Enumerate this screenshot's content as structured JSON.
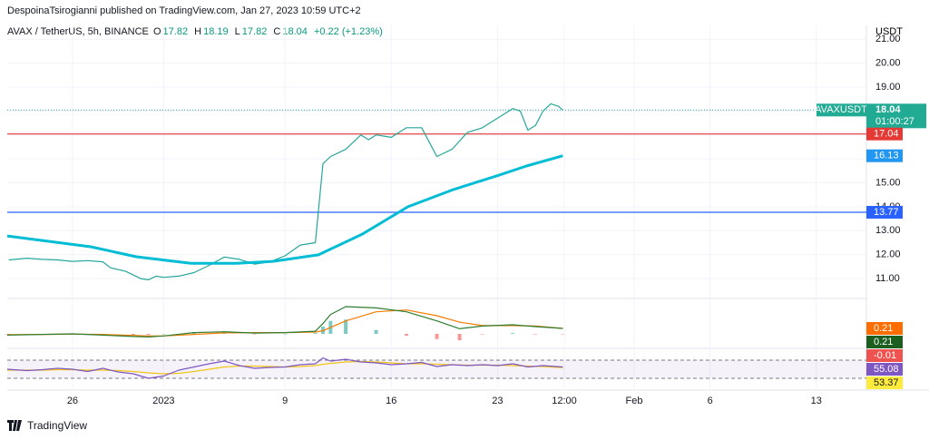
{
  "header": {
    "publisher": "DespoinaTsirogianni published on TradingView.com, Jan 27, 2023 10:59 UTC+2"
  },
  "symbol": {
    "name": "AVAX / TetherUS, 5h, BINANCE",
    "ohlc": [
      {
        "label": "O",
        "value": "17.82"
      },
      {
        "label": "H",
        "value": "18.19"
      },
      {
        "label": "L",
        "value": "17.82"
      },
      {
        "label": "C",
        "value": "18.04"
      }
    ],
    "change": "+0.22 (+1.23%)"
  },
  "chart_data": [
    {
      "type": "line",
      "y_unit": "USDT",
      "grid": true,
      "xlim": [
        -4.3,
        52.3
      ],
      "xticks": [
        {
          "value": 0,
          "label": "26"
        },
        {
          "value": 6,
          "label": "2023"
        },
        {
          "value": 14,
          "label": "9"
        },
        {
          "value": 21,
          "label": "16"
        },
        {
          "value": 28,
          "label": "23"
        },
        {
          "value": 32.4,
          "label": "12:00"
        },
        {
          "value": 37,
          "label": "Feb"
        },
        {
          "value": 42,
          "label": "6"
        },
        {
          "value": 49,
          "label": "13"
        }
      ],
      "ylim": [
        10.32,
        21.5
      ],
      "yticks": [
        {
          "value": 11,
          "label": "11.00"
        },
        {
          "value": 12,
          "label": "12.00"
        },
        {
          "value": 13,
          "label": "13.00"
        },
        {
          "value": 14,
          "label": "14.00"
        },
        {
          "value": 15,
          "label": "15.00"
        },
        {
          "value": 16,
          "label": "16.00"
        },
        {
          "value": 17,
          "label": "17.00"
        },
        {
          "value": 18,
          "label": "18.00"
        },
        {
          "value": 19,
          "label": "19.00"
        },
        {
          "value": 20,
          "label": "20.00"
        },
        {
          "value": 21,
          "label": "21.00"
        }
      ],
      "series": [
        {
          "color": "#26a69a",
          "x": [
            -4.2,
            -3,
            -2,
            -1,
            0,
            1,
            2,
            2.5,
            3.5,
            4.5,
            5,
            5.5,
            6,
            7,
            8,
            9,
            10,
            11,
            12,
            13,
            14,
            15,
            16,
            16.5,
            17,
            18,
            19,
            19.5,
            20,
            21,
            22,
            23,
            24,
            25,
            26,
            27,
            28,
            29,
            29.5,
            30,
            30.5,
            31,
            31.5,
            32,
            32.3
          ],
          "values": [
            11.78,
            11.85,
            11.8,
            11.78,
            11.72,
            11.75,
            11.7,
            11.45,
            11.3,
            11.0,
            10.95,
            11.1,
            11.05,
            11.1,
            11.25,
            11.55,
            11.9,
            11.8,
            11.6,
            11.7,
            11.95,
            12.4,
            12.5,
            15.8,
            16.1,
            16.4,
            17.0,
            16.8,
            17.0,
            16.9,
            17.3,
            17.3,
            16.1,
            16.4,
            17.1,
            17.3,
            17.7,
            18.1,
            18.0,
            17.2,
            17.4,
            18.0,
            18.3,
            18.2,
            18.04
          ]
        },
        {
          "color": "#00bcd4",
          "width": 3,
          "x": [
            -4.3,
            1.2,
            4.2,
            7.8,
            10.8,
            13.2,
            16.2,
            19.1,
            22.1,
            25.1,
            28.1,
            29.9,
            32.3
          ],
          "values": [
            12.78,
            12.33,
            11.91,
            11.64,
            11.64,
            11.72,
            11.99,
            12.86,
            14.0,
            14.72,
            15.32,
            15.7,
            16.13
          ],
          "last_label": {
            "value": 16.13,
            "label": "16.13",
            "color": "#2196f3"
          }
        }
      ],
      "price_lines": [
        {
          "value": 17.04,
          "label": "17.04",
          "color": "#e53935"
        },
        {
          "value": 13.77,
          "label": "13.77",
          "color": "#2962ff"
        }
      ],
      "last_price": {
        "symbol": "AVAXUSDT",
        "value": 18.04,
        "label": "18.04",
        "countdown": "01:00:27",
        "color": "#22ab94"
      }
    },
    {
      "type": "line",
      "ylim": [
        -0.42,
        1.26
      ],
      "series": [
        {
          "type": "histogram",
          "color": "#26a69a",
          "negative_color": "#ef5350",
          "x": [
            -4.3,
            -2,
            0,
            2,
            4,
            5,
            6,
            8,
            10,
            12,
            14,
            16,
            16.5,
            17,
            18,
            20,
            22,
            24,
            25.5,
            27,
            29,
            30.5,
            32.3
          ],
          "values": [
            -0.02,
            0,
            0.01,
            -0.03,
            -0.04,
            -0.04,
            0,
            0.07,
            0.04,
            -0.02,
            0,
            0.03,
            0.28,
            0.5,
            0.55,
            0.15,
            -0.07,
            -0.2,
            -0.25,
            -0.02,
            0.03,
            -0.02,
            -0.01
          ],
          "last_label": {
            "value": -0.01,
            "label": "-0.01",
            "color": "#ef5350"
          }
        },
        {
          "color": "#f57c00",
          "x": [
            -4.3,
            -2,
            0,
            2,
            4,
            5,
            6,
            8,
            10,
            12,
            14,
            16,
            16.5,
            17,
            18,
            20,
            22,
            24,
            25.5,
            27,
            29,
            30.5,
            32.3
          ],
          "values": [
            -0.03,
            -0.02,
            -0.01,
            -0.02,
            -0.06,
            -0.08,
            -0.08,
            -0.02,
            0.04,
            0.05,
            0.05,
            0.07,
            0.12,
            0.25,
            0.5,
            0.85,
            0.92,
            0.7,
            0.45,
            0.32,
            0.32,
            0.3,
            0.21
          ],
          "last_label": {
            "value": 0.21,
            "label": "0.21",
            "color": "#ff6d00"
          }
        },
        {
          "color": "#2e7d32",
          "x": [
            -4.3,
            -2,
            0,
            2,
            4,
            5,
            6,
            8,
            10,
            12,
            14,
            16,
            16.5,
            17,
            18,
            20,
            22,
            24,
            25.5,
            27,
            29,
            30.5,
            32.3
          ],
          "values": [
            -0.05,
            -0.02,
            0.0,
            -0.05,
            -0.1,
            -0.12,
            -0.08,
            0.05,
            0.08,
            0.03,
            0.05,
            0.1,
            0.4,
            0.75,
            1.05,
            1.0,
            0.85,
            0.5,
            0.2,
            0.3,
            0.35,
            0.28,
            0.21
          ],
          "last_label": {
            "value": 0.21,
            "label": "0.21",
            "color": "#1b5e20"
          }
        }
      ]
    },
    {
      "type": "line",
      "ylim": [
        8,
        88
      ],
      "levels": [
        70,
        30
      ],
      "series": [
        {
          "color": "#f0c419",
          "x": [
            -4.3,
            -3,
            -2,
            -1,
            0,
            1,
            2,
            3,
            4,
            5,
            6,
            7,
            8,
            9,
            10,
            11,
            12,
            13,
            14,
            15,
            16,
            16.5,
            17,
            18,
            19,
            20,
            21,
            22,
            23,
            24,
            25,
            26,
            27,
            28,
            29,
            30,
            31,
            32.3
          ],
          "values": [
            48,
            48,
            48,
            49,
            49,
            48,
            48,
            47,
            45,
            42,
            40,
            41,
            45,
            50,
            55,
            57,
            57,
            56,
            55,
            56,
            58,
            61,
            63,
            66,
            67,
            66,
            64,
            62,
            62,
            61,
            60,
            59,
            59,
            59,
            58,
            57,
            56,
            53.37
          ],
          "last_label": {
            "value": 53.37,
            "label": "53.37",
            "color": "#ffeb3b",
            "text_color": "#131722"
          }
        },
        {
          "color": "#7e57c2",
          "x": [
            -4.3,
            -3,
            -2,
            -1,
            0,
            1,
            2,
            3,
            4,
            5,
            6,
            7,
            8,
            9,
            10,
            11,
            12,
            13,
            14,
            15,
            16,
            16.5,
            17,
            18,
            19,
            20,
            21,
            22,
            23,
            24,
            25,
            26,
            27,
            28,
            29,
            30,
            31,
            32.3
          ],
          "values": [
            50,
            47,
            49,
            52,
            50,
            45,
            52,
            44,
            40,
            30,
            35,
            48,
            55,
            62,
            68,
            58,
            52,
            54,
            55,
            60,
            62,
            75,
            68,
            72,
            66,
            64,
            60,
            62,
            65,
            56,
            60,
            58,
            60,
            58,
            62,
            55,
            58,
            55.08
          ],
          "last_label": {
            "value": 55.08,
            "label": "55.08",
            "color": "#7e57c2"
          }
        }
      ]
    }
  ],
  "footer": {
    "brand": "TradingView"
  }
}
